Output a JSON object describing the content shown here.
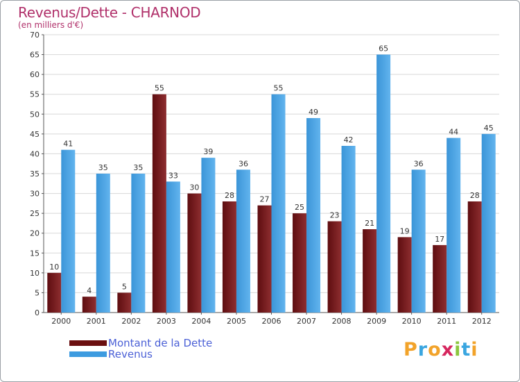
{
  "title": "Revenus/Dette - CHARNOD",
  "subtitle": "(en milliers d'€)",
  "colors": {
    "dette": "#7a1e22",
    "revenus": "#4da6e8",
    "title": "#b0306a",
    "legend_text": "#4a5fd6"
  },
  "legend": [
    {
      "label": "Montant de la Dette",
      "color": "#6b0f10"
    },
    {
      "label": "Revenus",
      "color": "#3d9be0"
    }
  ],
  "logo": {
    "text": "Proxiti",
    "letters": [
      {
        "ch": "P",
        "color": "#f2a32a"
      },
      {
        "ch": "r",
        "color": "#3aa6e0"
      },
      {
        "ch": "o",
        "color": "#f2a32a"
      },
      {
        "ch": "x",
        "color": "#d6265e"
      },
      {
        "ch": "i",
        "color": "#8cc63e"
      },
      {
        "ch": "t",
        "color": "#3aa6e0"
      },
      {
        "ch": "i",
        "color": "#f2a32a"
      }
    ]
  },
  "chart_data": {
    "type": "bar",
    "title": "Revenus/Dette - CHARNOD",
    "subtitle": "(en milliers d'€)",
    "categories": [
      "2000",
      "2001",
      "2002",
      "2003",
      "2004",
      "2005",
      "2006",
      "2007",
      "2008",
      "2009",
      "2010",
      "2011",
      "2012"
    ],
    "series": [
      {
        "name": "Montant de la Dette",
        "values": [
          10,
          4,
          5,
          55,
          30,
          28,
          27,
          25,
          23,
          21,
          19,
          17,
          28
        ]
      },
      {
        "name": "Revenus",
        "values": [
          41,
          35,
          35,
          33,
          39,
          36,
          55,
          49,
          42,
          65,
          36,
          44,
          45
        ]
      }
    ],
    "ylim": [
      0,
      70
    ],
    "yticks": [
      0,
      5,
      10,
      15,
      20,
      25,
      30,
      35,
      40,
      45,
      50,
      55,
      60,
      65,
      70
    ],
    "grid": true,
    "legend_position": "bottom-left"
  }
}
